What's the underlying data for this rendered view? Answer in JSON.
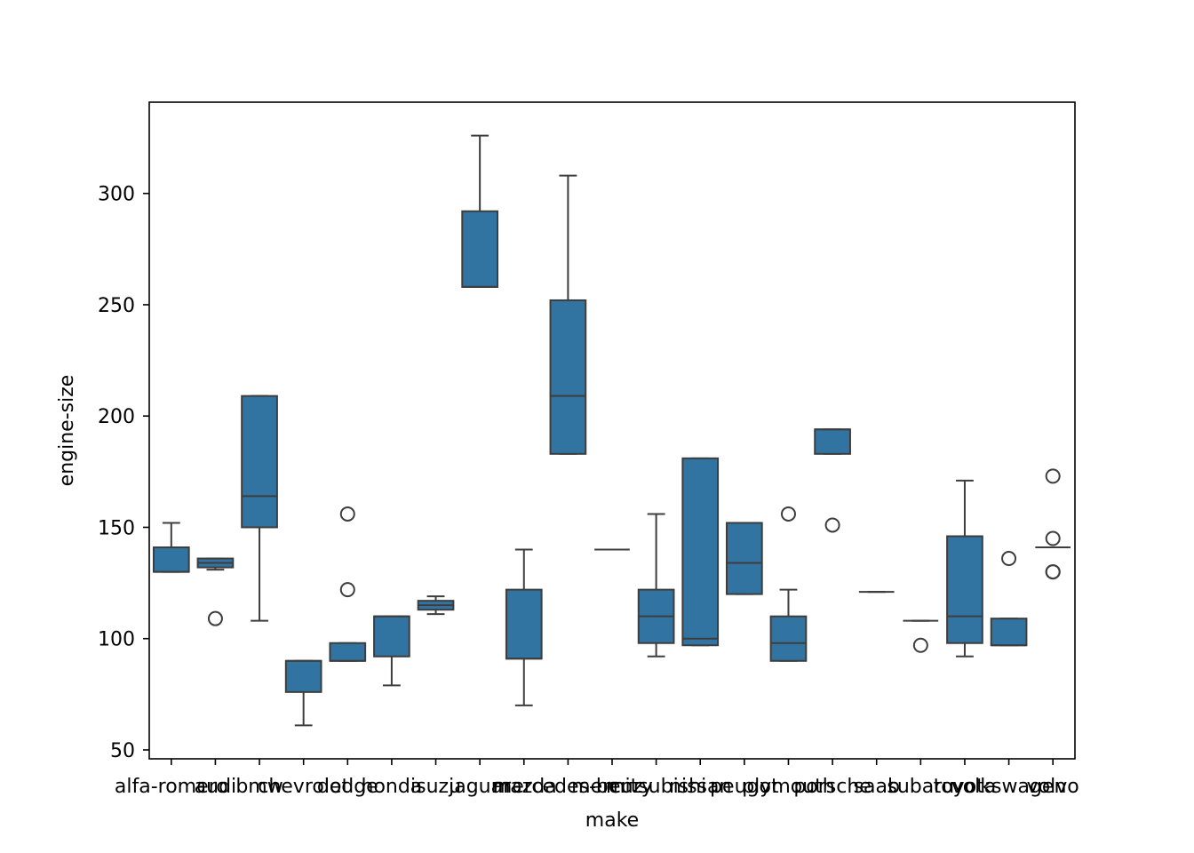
{
  "chart_data": {
    "type": "box",
    "xlabel": "make",
    "ylabel": "engine-size",
    "ylim": [
      46,
      341
    ],
    "yticks": [
      50,
      100,
      150,
      200,
      250,
      300
    ],
    "legend": "none",
    "grid": false,
    "box_color": "#3274a1",
    "line_color": "#3d3d3d",
    "categories": [
      "alfa-romero",
      "audi",
      "bmw",
      "chevrolet",
      "dodge",
      "honda",
      "isuzu",
      "jaguar",
      "mazda",
      "mercedes-benz",
      "mercury",
      "mitsubishi",
      "nissan",
      "peugot",
      "plymouth",
      "porsche",
      "saab",
      "subaru",
      "toyota",
      "volkswagen",
      "volvo"
    ],
    "boxes": [
      {
        "q1": 130,
        "median": 130,
        "q3": 141,
        "whisker_low": 130,
        "whisker_high": 152,
        "outliers": []
      },
      {
        "q1": 132,
        "median": 134,
        "q3": 136,
        "whisker_low": 131,
        "whisker_high": 136,
        "outliers": [
          109
        ]
      },
      {
        "q1": 150,
        "median": 164,
        "q3": 209,
        "whisker_low": 108,
        "whisker_high": 209,
        "outliers": []
      },
      {
        "q1": 76,
        "median": 90,
        "q3": 90,
        "whisker_low": 61,
        "whisker_high": 90,
        "outliers": []
      },
      {
        "q1": 90,
        "median": 90,
        "q3": 98,
        "whisker_low": 90,
        "whisker_high": 98,
        "outliers": [
          122,
          156
        ]
      },
      {
        "q1": 92,
        "median": 110,
        "q3": 110,
        "whisker_low": 79,
        "whisker_high": 110,
        "outliers": []
      },
      {
        "q1": 113,
        "median": 115,
        "q3": 117,
        "whisker_low": 111,
        "whisker_high": 119,
        "outliers": []
      },
      {
        "q1": 258,
        "median": 258,
        "q3": 292,
        "whisker_low": 258,
        "whisker_high": 326,
        "outliers": []
      },
      {
        "q1": 91,
        "median": 91,
        "q3": 122,
        "whisker_low": 70,
        "whisker_high": 140,
        "outliers": []
      },
      {
        "q1": 183,
        "median": 209,
        "q3": 252,
        "whisker_low": 183,
        "whisker_high": 308,
        "outliers": []
      },
      {
        "q1": 140,
        "median": 140,
        "q3": 140,
        "whisker_low": 140,
        "whisker_high": 140,
        "outliers": []
      },
      {
        "q1": 98,
        "median": 110,
        "q3": 122,
        "whisker_low": 92,
        "whisker_high": 156,
        "outliers": []
      },
      {
        "q1": 97,
        "median": 100,
        "q3": 181,
        "whisker_low": 97,
        "whisker_high": 181,
        "outliers": []
      },
      {
        "q1": 120,
        "median": 134,
        "q3": 152,
        "whisker_low": 120,
        "whisker_high": 152,
        "outliers": []
      },
      {
        "q1": 90,
        "median": 98,
        "q3": 110,
        "whisker_low": 90,
        "whisker_high": 122,
        "outliers": [
          156
        ]
      },
      {
        "q1": 183,
        "median": 194,
        "q3": 194,
        "whisker_low": 183,
        "whisker_high": 194,
        "outliers": [
          151
        ]
      },
      {
        "q1": 121,
        "median": 121,
        "q3": 121,
        "whisker_low": 121,
        "whisker_high": 121,
        "outliers": []
      },
      {
        "q1": 108,
        "median": 108,
        "q3": 108,
        "whisker_low": 108,
        "whisker_high": 108,
        "outliers": [
          97
        ]
      },
      {
        "q1": 98,
        "median": 110,
        "q3": 146,
        "whisker_low": 92,
        "whisker_high": 171,
        "outliers": []
      },
      {
        "q1": 97,
        "median": 97,
        "q3": 109,
        "whisker_low": 97,
        "whisker_high": 109,
        "outliers": [
          136
        ]
      },
      {
        "q1": 141,
        "median": 141,
        "q3": 141,
        "whisker_low": 141,
        "whisker_high": 141,
        "outliers": [
          130,
          130,
          145,
          173
        ]
      }
    ]
  }
}
